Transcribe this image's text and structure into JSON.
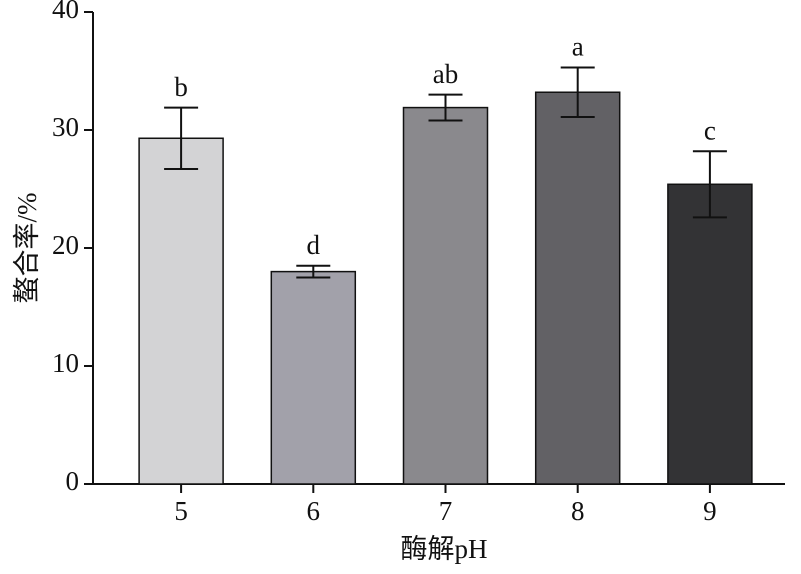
{
  "chart_data": {
    "type": "bar",
    "x_label": "酶解pH",
    "y_label": "螯合率/%",
    "categories": [
      "5",
      "6",
      "7",
      "8",
      "9"
    ],
    "values": [
      29.3,
      18.0,
      31.9,
      33.2,
      25.4
    ],
    "errors": [
      2.6,
      0.5,
      1.1,
      2.1,
      2.8
    ],
    "labels": [
      "b",
      "d",
      "ab",
      "a",
      "c"
    ],
    "colors": [
      "#d3d3d5",
      "#a2a1aa",
      "#8a898d",
      "#626165",
      "#333335"
    ],
    "ylim": [
      0,
      40
    ],
    "yticks": [
      0,
      10,
      20,
      30,
      40
    ],
    "grid": false
  }
}
